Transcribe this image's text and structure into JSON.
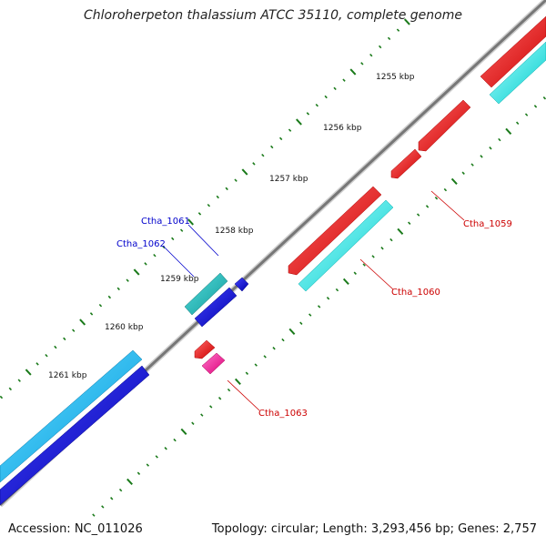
{
  "title": "Chloroherpeton thalassium ATCC 35110, complete genome",
  "footer": {
    "accession": "Accession: NC_011026",
    "summary": "Topology: circular; Length: 3,293,456 bp; Genes: 2,757"
  },
  "scale_labels": [
    "1255 kbp",
    "1256 kbp",
    "1257 kbp",
    "1258 kbp",
    "1259 kbp",
    "1260 kbp",
    "1261 kbp"
  ],
  "gene_labels": [
    {
      "name": "Ctha_1061",
      "color": "#0000cc"
    },
    {
      "name": "Ctha_1062",
      "color": "#0000cc"
    },
    {
      "name": "Ctha_1059",
      "color": "#cc0000"
    },
    {
      "name": "Ctha_1060",
      "color": "#cc0000"
    },
    {
      "name": "Ctha_1063",
      "color": "#cc0000"
    }
  ],
  "colors": {
    "backbone": "#808080",
    "tick": "#1a7a1a",
    "forward_cds": "#ee0000",
    "forward_rna": "#00ffff",
    "reverse_cds": "#0000ee",
    "reverse_rna": "#00bfff",
    "teal": "#20b2aa",
    "pink": "#ff3399"
  }
}
